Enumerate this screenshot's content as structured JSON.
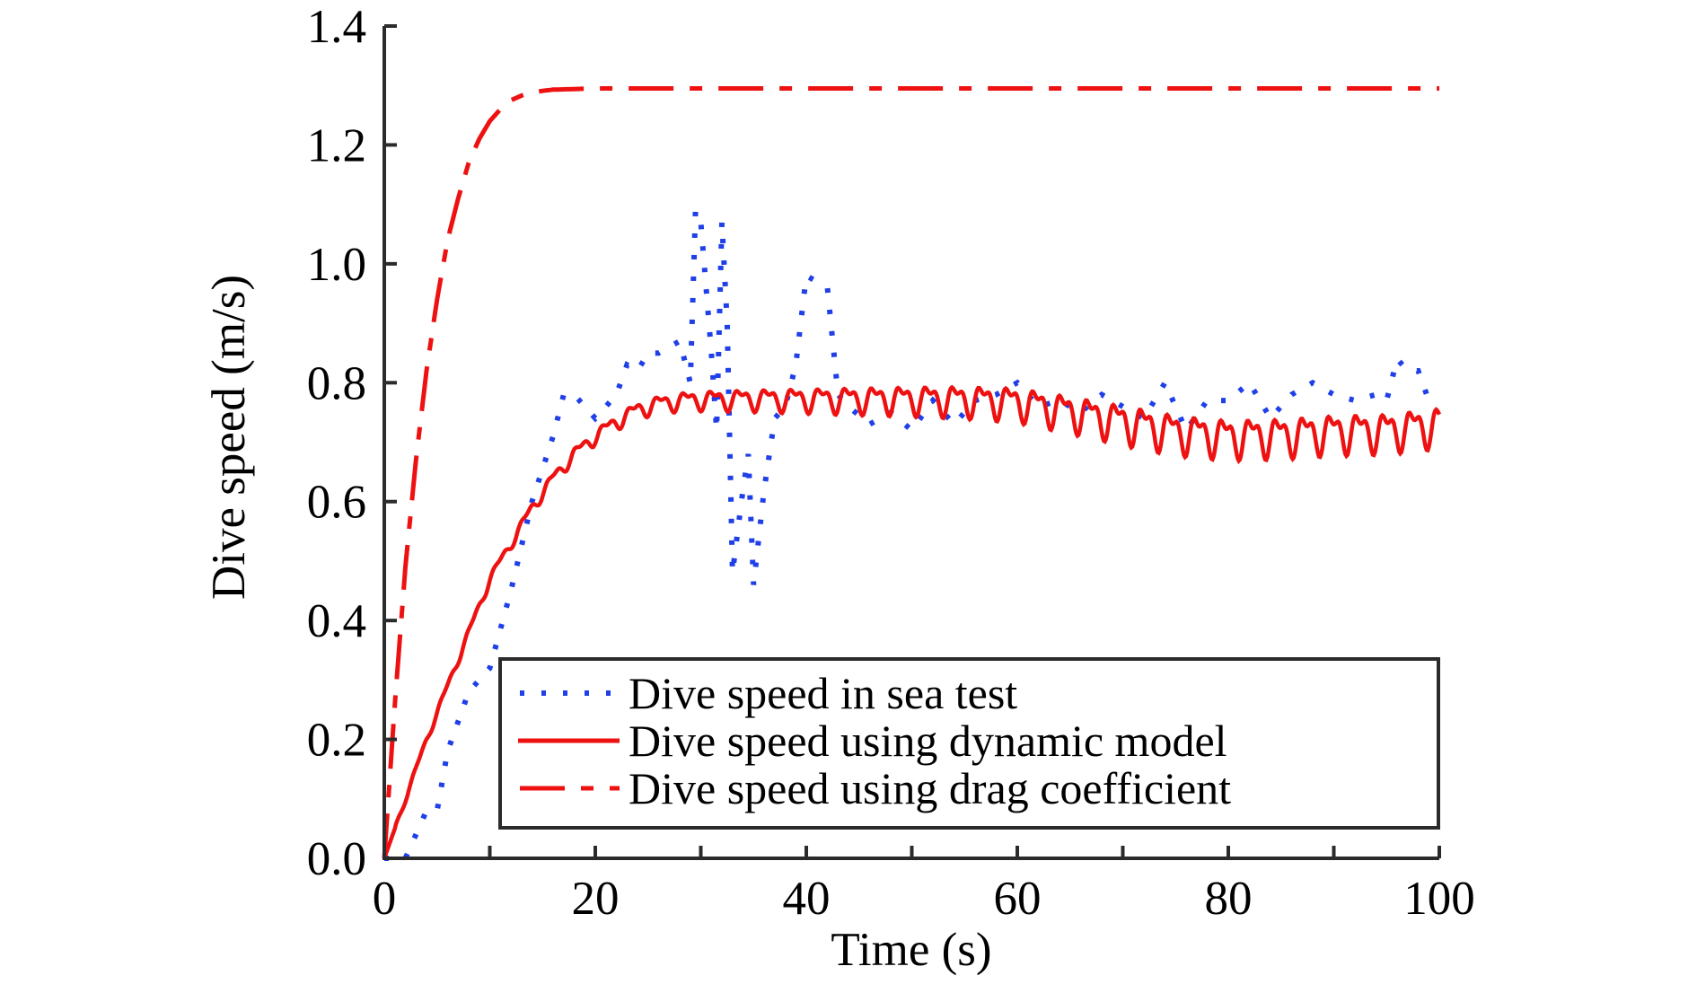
{
  "chart_data": {
    "type": "line",
    "title": "",
    "xlabel": "Time (s)",
    "ylabel": "Dive speed (m/s)",
    "xlim": [
      0,
      100
    ],
    "ylim": [
      0,
      1.4
    ],
    "xticks": [
      0,
      20,
      40,
      60,
      80,
      100
    ],
    "xtick_labels": [
      "0",
      "20",
      "40",
      "60",
      "80",
      "100"
    ],
    "x_minor_ticks": [
      10,
      30,
      50,
      70,
      90
    ],
    "yticks": [
      0,
      0.2,
      0.4,
      0.6,
      0.8,
      1.0,
      1.2,
      1.4
    ],
    "ytick_labels": [
      "0.0",
      "0.2",
      "0.4",
      "0.6",
      "0.8",
      "1.0",
      "1.2",
      "1.4"
    ],
    "grid": false,
    "legend_position": "bottom-right",
    "colors": {
      "sea_test": "#1f3fe8",
      "model": "#ee1111",
      "axis": "#2b2b2b"
    },
    "series": [
      {
        "name": "Dive speed in sea test",
        "style": "dotted",
        "color": "#1f3fe8",
        "x": [
          0,
          2,
          4,
          5,
          6,
          8,
          10,
          12,
          14,
          16,
          17,
          18,
          19,
          20,
          21,
          22,
          23,
          24,
          25,
          26,
          27,
          28,
          29,
          29.5,
          30,
          30.5,
          31,
          31.5,
          32,
          32.5,
          33,
          33.5,
          34,
          34.5,
          35,
          36,
          37,
          38,
          39,
          40,
          41,
          42,
          43,
          44,
          46,
          48,
          50,
          52,
          54,
          56,
          58,
          60,
          62,
          64,
          66,
          68,
          70,
          72,
          74,
          76,
          78,
          80,
          82,
          84,
          86,
          88,
          90,
          92,
          94,
          95,
          96,
          97,
          98,
          99
        ],
        "y": [
          0.0,
          0.0,
          0.08,
          0.08,
          0.18,
          0.28,
          0.32,
          0.45,
          0.6,
          0.71,
          0.78,
          0.78,
          0.76,
          0.74,
          0.76,
          0.78,
          0.83,
          0.82,
          0.85,
          0.85,
          0.86,
          0.87,
          0.8,
          1.09,
          1.07,
          0.96,
          0.85,
          0.72,
          1.07,
          0.9,
          0.48,
          0.55,
          0.62,
          0.68,
          0.46,
          0.62,
          0.74,
          0.76,
          0.83,
          0.98,
          0.97,
          0.96,
          0.78,
          0.76,
          0.73,
          0.75,
          0.72,
          0.77,
          0.73,
          0.77,
          0.78,
          0.8,
          0.76,
          0.77,
          0.75,
          0.78,
          0.76,
          0.74,
          0.8,
          0.72,
          0.77,
          0.77,
          0.8,
          0.74,
          0.78,
          0.8,
          0.78,
          0.77,
          0.78,
          0.77,
          0.84,
          0.82,
          0.82,
          0.77
        ]
      },
      {
        "name": "Dive speed using dynamic model",
        "style": "solid",
        "color": "#ee1111",
        "trend_x": [
          0,
          2,
          4,
          6,
          8,
          10,
          12,
          14,
          16,
          18,
          20,
          22,
          24,
          26,
          28,
          30,
          35,
          40,
          45,
          50,
          55,
          60,
          65,
          70,
          75,
          80,
          85,
          90,
          95,
          100
        ],
        "trend_y": [
          0.0,
          0.1,
          0.2,
          0.29,
          0.38,
          0.47,
          0.53,
          0.59,
          0.64,
          0.68,
          0.71,
          0.735,
          0.755,
          0.765,
          0.77,
          0.772,
          0.773,
          0.773,
          0.773,
          0.773,
          0.772,
          0.768,
          0.752,
          0.735,
          0.718,
          0.71,
          0.712,
          0.718,
          0.72,
          0.73
        ],
        "ripple_period_s": 2.55,
        "ripple_amplitude_start": 0.005,
        "ripple_amplitude_end": 0.042
      },
      {
        "name": "Dive speed using drag coefficient",
        "style": "dashdot",
        "color": "#ee1111",
        "x": [
          0,
          1,
          2,
          3,
          4,
          5,
          6,
          7,
          8,
          9,
          10,
          11,
          12,
          13,
          14,
          15,
          16,
          18,
          20,
          25,
          30,
          40,
          50,
          60,
          70,
          80,
          90,
          100
        ],
        "y": [
          0.0,
          0.26,
          0.49,
          0.67,
          0.82,
          0.94,
          1.04,
          1.11,
          1.17,
          1.21,
          1.24,
          1.26,
          1.275,
          1.283,
          1.288,
          1.291,
          1.293,
          1.294,
          1.295,
          1.295,
          1.295,
          1.295,
          1.295,
          1.295,
          1.295,
          1.295,
          1.295,
          1.295
        ]
      }
    ]
  }
}
